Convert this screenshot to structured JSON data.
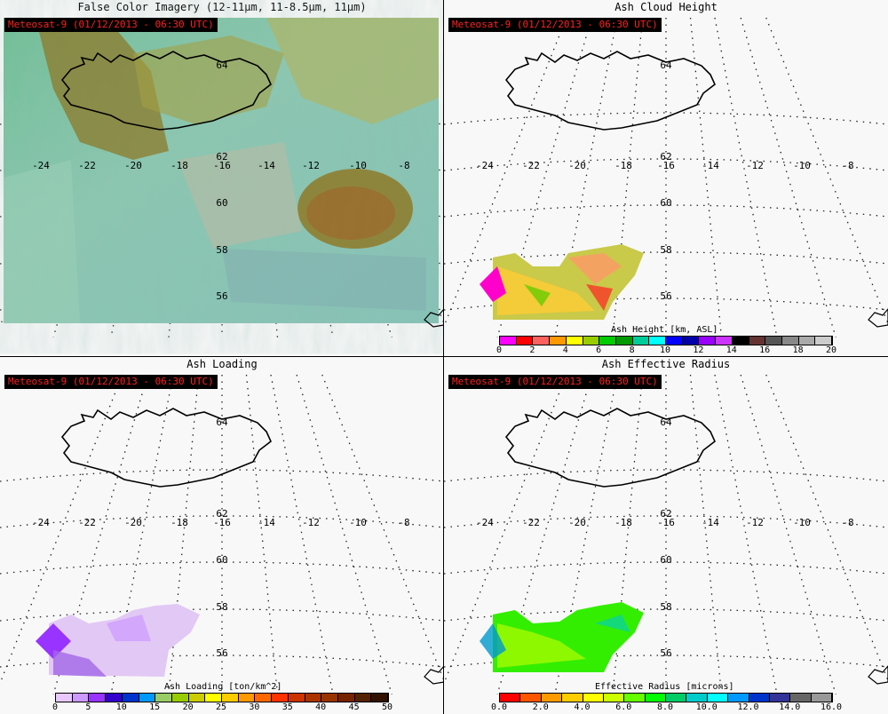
{
  "panels": [
    {
      "id": "false-color",
      "title": "False Color Imagery (12-11µm, 11-8.5µm, 11µm)",
      "badge": "Meteosat-9  (01/12/2013 - 06:30 UTC)"
    },
    {
      "id": "ash-height",
      "title": "Ash Cloud Height",
      "badge": "Meteosat-9  (01/12/2013 - 06:30 UTC)",
      "colorbar": {
        "label": "Ash Height [km, ASL]",
        "ticks": [
          "0",
          "2",
          "4",
          "6",
          "8",
          "10",
          "12",
          "14",
          "16",
          "18",
          "20"
        ],
        "colors": [
          "#ff00ff",
          "#ff0000",
          "#ff6060",
          "#ff9900",
          "#ffff00",
          "#99cc00",
          "#00cc00",
          "#009900",
          "#00cc99",
          "#00ffff",
          "#0000ff",
          "#0000aa",
          "#9900ff",
          "#cc33ff",
          "#000000",
          "#663333",
          "#555555",
          "#888888",
          "#aaaaaa",
          "#cccccc"
        ]
      }
    },
    {
      "id": "ash-loading",
      "title": "Ash Loading",
      "badge": "Meteosat-9  (01/12/2013 - 06:30 UTC)",
      "colorbar": {
        "label": "Ash Loading [ton/km^2]",
        "ticks": [
          "0",
          "5",
          "10",
          "15",
          "20",
          "25",
          "30",
          "35",
          "40",
          "45",
          "50"
        ],
        "colors": [
          "#e8c8ff",
          "#cc99ff",
          "#9933ff",
          "#3300cc",
          "#0033cc",
          "#0099ff",
          "#99cc66",
          "#99cc00",
          "#cccc00",
          "#ffff00",
          "#ffcc00",
          "#ff9900",
          "#ff6600",
          "#ff3300",
          "#cc3300",
          "#aa3300",
          "#993300",
          "#772200",
          "#552200",
          "#331100"
        ]
      }
    },
    {
      "id": "ash-radius",
      "title": "Ash Effective Radius",
      "badge": "Meteosat-9  (01/12/2013 - 06:30 UTC)",
      "colorbar": {
        "label": "Effective Radius [microns]",
        "ticks": [
          "0.0",
          "2.0",
          "4.0",
          "6.0",
          "8.0",
          "10.0",
          "12.0",
          "14.0",
          "16.0"
        ],
        "colors": [
          "#ff0000",
          "#ff5500",
          "#ff9900",
          "#ffcc00",
          "#ffff00",
          "#ccff00",
          "#66ff00",
          "#00ff00",
          "#00cc66",
          "#00cccc",
          "#00ffff",
          "#0099ff",
          "#0033cc",
          "#333399",
          "#666666",
          "#999999"
        ]
      }
    }
  ],
  "map": {
    "lon_labels": [
      "-24",
      "-22",
      "-20",
      "-18",
      "-16",
      "-14",
      "-12",
      "-10",
      "-8"
    ],
    "lat_labels": [
      "62",
      "60",
      "58",
      "56"
    ],
    "lat_top_label": "64"
  }
}
